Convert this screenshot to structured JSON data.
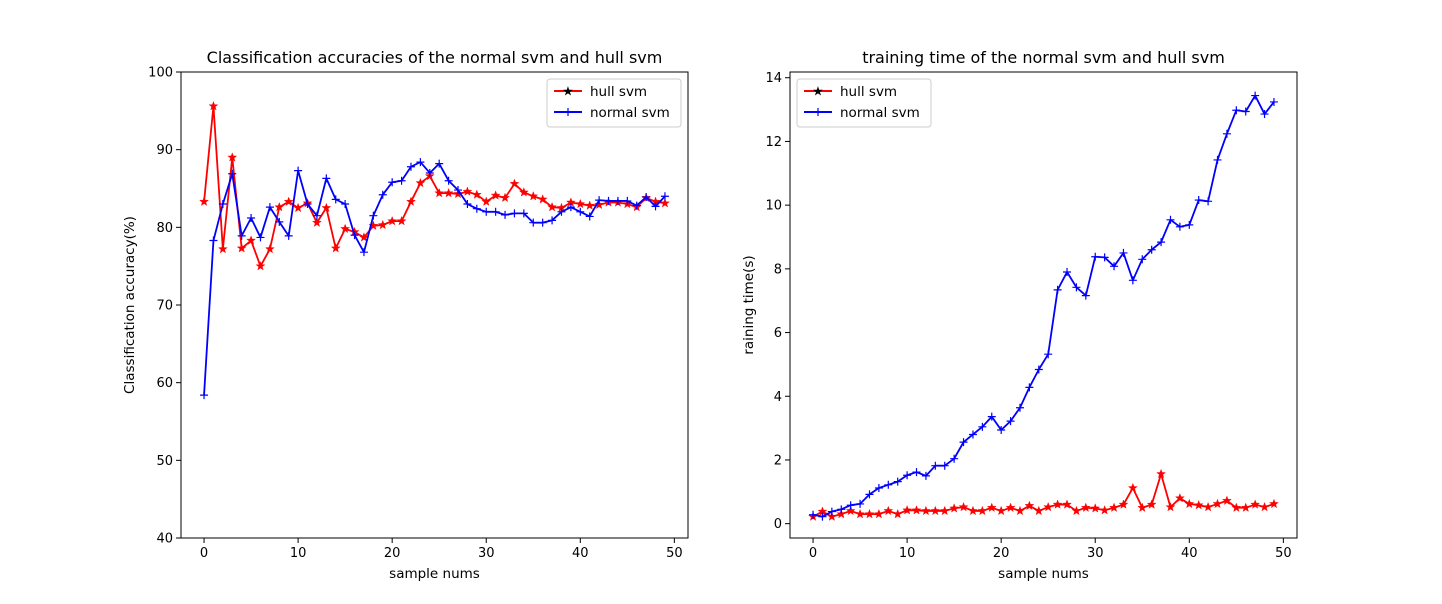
{
  "chart_data": [
    {
      "type": "line",
      "title": "Classification accuracies of the normal svm and hull svm",
      "xlabel": "sample nums",
      "ylabel": "Classification accuracy(%)",
      "xlim": [
        -2.45,
        51.45
      ],
      "ylim": [
        40,
        100
      ],
      "xticks": [
        0,
        10,
        20,
        30,
        40,
        50
      ],
      "yticks": [
        40,
        50,
        60,
        70,
        80,
        90,
        100
      ],
      "grid": false,
      "legend": "top-right",
      "series": [
        {
          "name": "hull svm",
          "color": "#ff0000",
          "marker": "star",
          "x": [
            0,
            1,
            2,
            3,
            4,
            5,
            6,
            7,
            8,
            9,
            10,
            11,
            12,
            13,
            14,
            15,
            16,
            17,
            18,
            19,
            20,
            21,
            22,
            23,
            24,
            25,
            26,
            27,
            28,
            29,
            30,
            31,
            32,
            33,
            34,
            35,
            36,
            37,
            38,
            39,
            40,
            41,
            42,
            43,
            44,
            45,
            46,
            47,
            48,
            49
          ],
          "values": [
            83.3,
            95.6,
            77.2,
            89.0,
            77.3,
            78.3,
            75.0,
            77.2,
            82.6,
            83.3,
            82.5,
            83.1,
            80.6,
            82.5,
            77.3,
            79.8,
            79.4,
            78.7,
            80.2,
            80.3,
            80.8,
            80.8,
            83.3,
            85.7,
            86.6,
            84.4,
            84.4,
            84.3,
            84.6,
            84.2,
            83.3,
            84.1,
            83.8,
            85.6,
            84.5,
            84.0,
            83.6,
            82.6,
            82.5,
            83.2,
            83.0,
            82.8,
            82.9,
            83.2,
            83.2,
            83.0,
            82.6,
            83.8,
            83.3,
            83.1
          ]
        },
        {
          "name": "normal svm",
          "color": "#0000ff",
          "marker": "plus",
          "x": [
            0,
            1,
            2,
            3,
            4,
            5,
            6,
            7,
            8,
            9,
            10,
            11,
            12,
            13,
            14,
            15,
            16,
            17,
            18,
            19,
            20,
            21,
            22,
            23,
            24,
            25,
            26,
            27,
            28,
            29,
            30,
            31,
            32,
            33,
            34,
            35,
            36,
            37,
            38,
            39,
            40,
            41,
            42,
            43,
            44,
            45,
            46,
            47,
            48,
            49
          ],
          "values": [
            58.4,
            78.3,
            83.0,
            86.9,
            78.9,
            81.2,
            78.7,
            82.6,
            80.7,
            78.9,
            87.3,
            83.0,
            81.5,
            86.3,
            83.6,
            83.0,
            79.0,
            76.8,
            81.5,
            84.2,
            85.8,
            86.0,
            87.8,
            88.4,
            87.0,
            88.2,
            86.0,
            84.8,
            83.0,
            82.4,
            82.0,
            82.0,
            81.6,
            81.8,
            81.8,
            80.6,
            80.6,
            80.9,
            82.0,
            82.6,
            82.0,
            81.4,
            83.5,
            83.4,
            83.4,
            83.4,
            82.8,
            83.9,
            82.7,
            84.0
          ]
        }
      ]
    },
    {
      "type": "line",
      "title": "training time of the normal svm and hull svm",
      "xlabel": "sample nums",
      "ylabel": "raining time(s)",
      "xlim": [
        -2.45,
        51.45
      ],
      "ylim": [
        -0.45,
        14.18
      ],
      "xticks": [
        0,
        10,
        20,
        30,
        40,
        50
      ],
      "yticks": [
        0,
        2,
        4,
        6,
        8,
        10,
        12,
        14
      ],
      "grid": false,
      "legend": "top-left",
      "series": [
        {
          "name": "hull svm",
          "color": "#ff0000",
          "marker": "star",
          "x": [
            0,
            1,
            2,
            3,
            4,
            5,
            6,
            7,
            8,
            9,
            10,
            11,
            12,
            13,
            14,
            15,
            16,
            17,
            18,
            19,
            20,
            21,
            22,
            23,
            24,
            25,
            26,
            27,
            28,
            29,
            30,
            31,
            32,
            33,
            34,
            35,
            36,
            37,
            38,
            39,
            40,
            41,
            42,
            43,
            44,
            45,
            46,
            47,
            48,
            49
          ],
          "values": [
            0.22,
            0.38,
            0.22,
            0.3,
            0.4,
            0.3,
            0.3,
            0.3,
            0.4,
            0.3,
            0.42,
            0.42,
            0.4,
            0.4,
            0.4,
            0.48,
            0.52,
            0.4,
            0.4,
            0.5,
            0.4,
            0.5,
            0.4,
            0.56,
            0.4,
            0.52,
            0.6,
            0.6,
            0.4,
            0.5,
            0.48,
            0.42,
            0.5,
            0.6,
            1.12,
            0.5,
            0.6,
            1.56,
            0.52,
            0.8,
            0.62,
            0.58,
            0.52,
            0.62,
            0.72,
            0.5,
            0.5,
            0.6,
            0.52,
            0.62
          ]
        },
        {
          "name": "normal svm",
          "color": "#0000ff",
          "marker": "plus",
          "x": [
            0,
            1,
            2,
            3,
            4,
            5,
            6,
            7,
            8,
            9,
            10,
            11,
            12,
            13,
            14,
            15,
            16,
            17,
            18,
            19,
            20,
            21,
            22,
            23,
            24,
            25,
            26,
            27,
            28,
            29,
            30,
            31,
            32,
            33,
            34,
            35,
            36,
            37,
            38,
            39,
            40,
            41,
            42,
            43,
            44,
            45,
            46,
            47,
            48,
            49
          ],
          "values": [
            0.28,
            0.22,
            0.38,
            0.45,
            0.58,
            0.62,
            0.92,
            1.12,
            1.22,
            1.32,
            1.52,
            1.62,
            1.5,
            1.82,
            1.82,
            2.04,
            2.56,
            2.8,
            3.04,
            3.36,
            2.94,
            3.22,
            3.64,
            4.28,
            4.84,
            5.32,
            7.34,
            7.9,
            7.42,
            7.16,
            8.38,
            8.36,
            8.08,
            8.5,
            7.64,
            8.3,
            8.6,
            8.84,
            9.54,
            9.32,
            9.38,
            10.16,
            10.12,
            11.42,
            12.24,
            12.98,
            12.94,
            13.44,
            12.86,
            13.24
          ]
        }
      ]
    }
  ]
}
